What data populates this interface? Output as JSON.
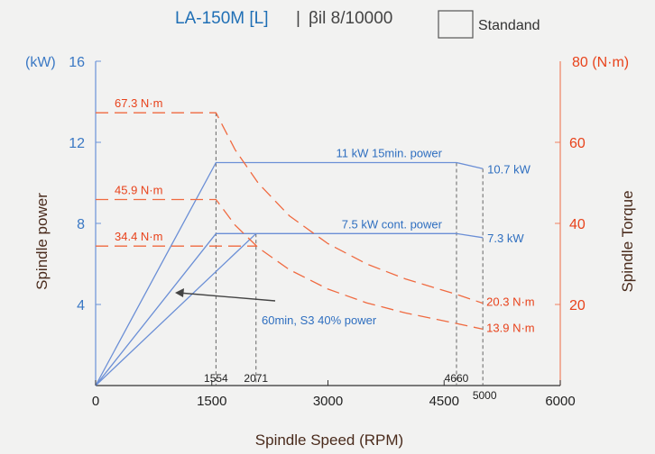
{
  "header": {
    "title": "LA-150M [L]",
    "separator": "|",
    "subtitle": "βil 8/10000",
    "legend_label": "Standand"
  },
  "chart_data": {
    "type": "line",
    "xlabel": "Spindle Speed (RPM)",
    "ylabel_left": "Spindle power",
    "ylabel_right": "Spindle Torque",
    "unit_left": "(kW)",
    "unit_right": "80 (N·m)",
    "xlim": [
      0,
      6000
    ],
    "ylim_left": [
      0,
      16
    ],
    "ylim_right": [
      0,
      80
    ],
    "x_ticks": [
      "0",
      "1500",
      "3000",
      "4500",
      "6000"
    ],
    "x_ticks_small": [
      "5000"
    ],
    "left_ticks": [
      "4",
      "8",
      "12",
      "16"
    ],
    "right_ticks": [
      "20",
      "40",
      "60"
    ],
    "marker_speeds": [
      1554,
      2071,
      4660,
      5000
    ],
    "marker_labels": [
      "1554",
      "2071",
      "4660"
    ],
    "series": [
      {
        "name": "11 kW 15min. power",
        "axis": "left",
        "style": "solid",
        "color": "#6b8fd6",
        "points": [
          [
            0,
            0
          ],
          [
            1554,
            11
          ],
          [
            4660,
            11
          ],
          [
            5000,
            10.7
          ]
        ],
        "end_label": "10.7 kW"
      },
      {
        "name": "7.5 kW cont. power",
        "axis": "left",
        "style": "solid",
        "color": "#6b8fd6",
        "points": [
          [
            0,
            0
          ],
          [
            1554,
            7.5
          ],
          [
            4660,
            7.5
          ],
          [
            5000,
            7.3
          ]
        ],
        "end_label": "7.3 kW"
      },
      {
        "name": "60min, S3 40% power",
        "axis": "left",
        "style": "solid",
        "color": "#6b8fd6",
        "points": [
          [
            0,
            0
          ],
          [
            2071,
            7.5
          ]
        ]
      },
      {
        "name": "67.3 N·m",
        "axis": "right",
        "style": "dashed",
        "color": "#f06a40",
        "points": [
          [
            0,
            67.3
          ],
          [
            1554,
            67.3
          ],
          [
            1800,
            58.2
          ],
          [
            2100,
            49.9
          ],
          [
            2500,
            41.9
          ],
          [
            3000,
            35
          ],
          [
            3500,
            30
          ],
          [
            4000,
            26.3
          ],
          [
            4660,
            22.5
          ],
          [
            5000,
            20.3
          ]
        ],
        "end_label": "20.3 N·m"
      },
      {
        "name": "45.9 N·m",
        "axis": "right",
        "style": "dashed",
        "color": "#f06a40",
        "points": [
          [
            0,
            45.9
          ],
          [
            1554,
            45.9
          ],
          [
            1800,
            39.6
          ],
          [
            2100,
            34
          ],
          [
            2500,
            28.6
          ],
          [
            3000,
            23.8
          ],
          [
            3500,
            20.4
          ],
          [
            4000,
            17.9
          ],
          [
            4660,
            15.3
          ],
          [
            5000,
            13.9
          ]
        ],
        "end_label": "13.9 N·m"
      },
      {
        "name": "34.4 N·m",
        "axis": "right",
        "style": "dashed",
        "color": "#f06a40",
        "points": [
          [
            0,
            34.4
          ],
          [
            2071,
            34.4
          ]
        ]
      }
    ],
    "annotations": {
      "s3_label": "60min, S3 40% power"
    },
    "grid": false
  },
  "colors": {
    "left_axis": "#3a78c4",
    "right_axis": "#e8431c",
    "power_line": "#6b8fd6",
    "torque_line": "#f06a40",
    "title": "#1f6fb5",
    "axis_title": "#4a2b1c"
  }
}
